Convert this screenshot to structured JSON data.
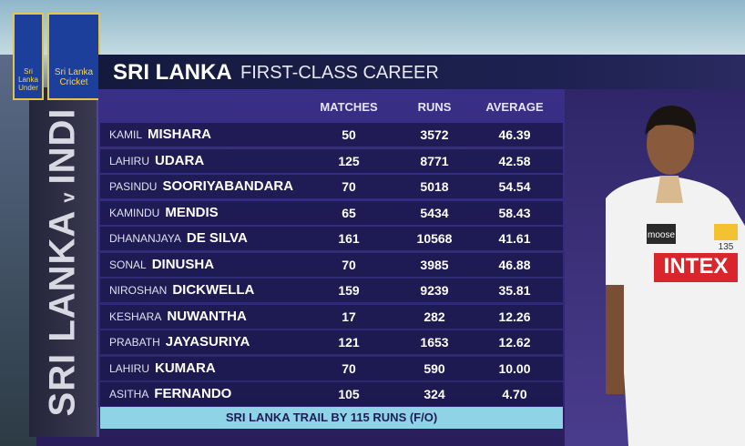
{
  "logo": {
    "left_text": "Sri Lanka Under",
    "main_text": "Sri Lanka Cricket"
  },
  "header": {
    "title": "SRI LANKA",
    "subtitle": "FIRST-CLASS CAREER"
  },
  "side_banner": {
    "team1": "SRI LANKA",
    "versus": "v",
    "team2": "INDI"
  },
  "table": {
    "columns": [
      "MATCHES",
      "RUNS",
      "AVERAGE"
    ],
    "rows": [
      {
        "first": "KAMIL",
        "last": "MISHARA",
        "matches": "50",
        "runs": "3572",
        "average": "46.39"
      },
      {
        "first": "LAHIRU",
        "last": "UDARA",
        "matches": "125",
        "runs": "8771",
        "average": "42.58"
      },
      {
        "first": "PASINDU",
        "last": "SOORIYABANDARA",
        "matches": "70",
        "runs": "5018",
        "average": "54.54"
      },
      {
        "first": "KAMINDU",
        "last": "MENDIS",
        "matches": "65",
        "runs": "5434",
        "average": "58.43"
      },
      {
        "first": "DHANANJAYA",
        "last": "DE SILVA",
        "matches": "161",
        "runs": "10568",
        "average": "41.61"
      },
      {
        "first": "SONAL",
        "last": "DINUSHA",
        "matches": "70",
        "runs": "3985",
        "average": "46.88"
      },
      {
        "first": "NIROSHAN",
        "last": "DICKWELLA",
        "matches": "159",
        "runs": "9239",
        "average": "35.81"
      },
      {
        "first": "KESHARA",
        "last": "NUWANTHA",
        "matches": "17",
        "runs": "282",
        "average": "12.26"
      },
      {
        "first": "PRABATH",
        "last": "JAYASURIYA",
        "matches": "121",
        "runs": "1653",
        "average": "12.62"
      },
      {
        "first": "LAHIRU",
        "last": "KUMARA",
        "matches": "70",
        "runs": "590",
        "average": "10.00"
      },
      {
        "first": "ASITHA",
        "last": "FERNANDO",
        "matches": "105",
        "runs": "324",
        "average": "4.70"
      }
    ]
  },
  "footer": "SRI LANKA TRAIL BY 115 RUNS (F/O)",
  "player": {
    "sponsor": "INTEX",
    "brand": "moose",
    "cap_number": "135"
  }
}
